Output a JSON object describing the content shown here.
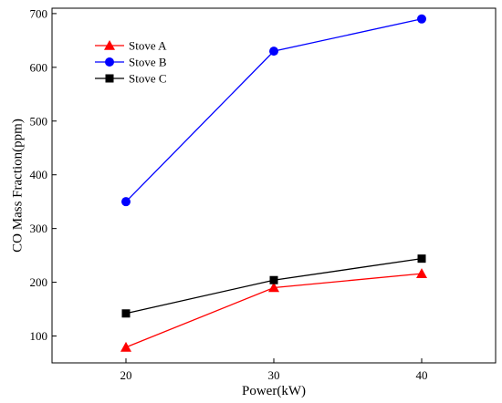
{
  "chart_data": {
    "type": "line",
    "title": "",
    "xlabel": "Power(kW)",
    "ylabel": "CO Mass Fraction(ppm)",
    "xlim": [
      15,
      45
    ],
    "ylim": [
      50,
      710
    ],
    "x_ticks": [
      20,
      30,
      40
    ],
    "y_ticks": [
      100,
      200,
      300,
      400,
      500,
      600,
      700
    ],
    "x": [
      20,
      30,
      40
    ],
    "grid": false,
    "legend_position": "top-left",
    "series": [
      {
        "name": "Stove A",
        "values": [
          79,
          190,
          216
        ],
        "color": "#ff0000",
        "marker": "triangle"
      },
      {
        "name": "Stove B",
        "values": [
          350,
          630,
          690
        ],
        "color": "#0000ff",
        "marker": "circle"
      },
      {
        "name": "Stove C",
        "values": [
          142,
          204,
          244
        ],
        "color": "#000000",
        "marker": "square"
      }
    ]
  }
}
